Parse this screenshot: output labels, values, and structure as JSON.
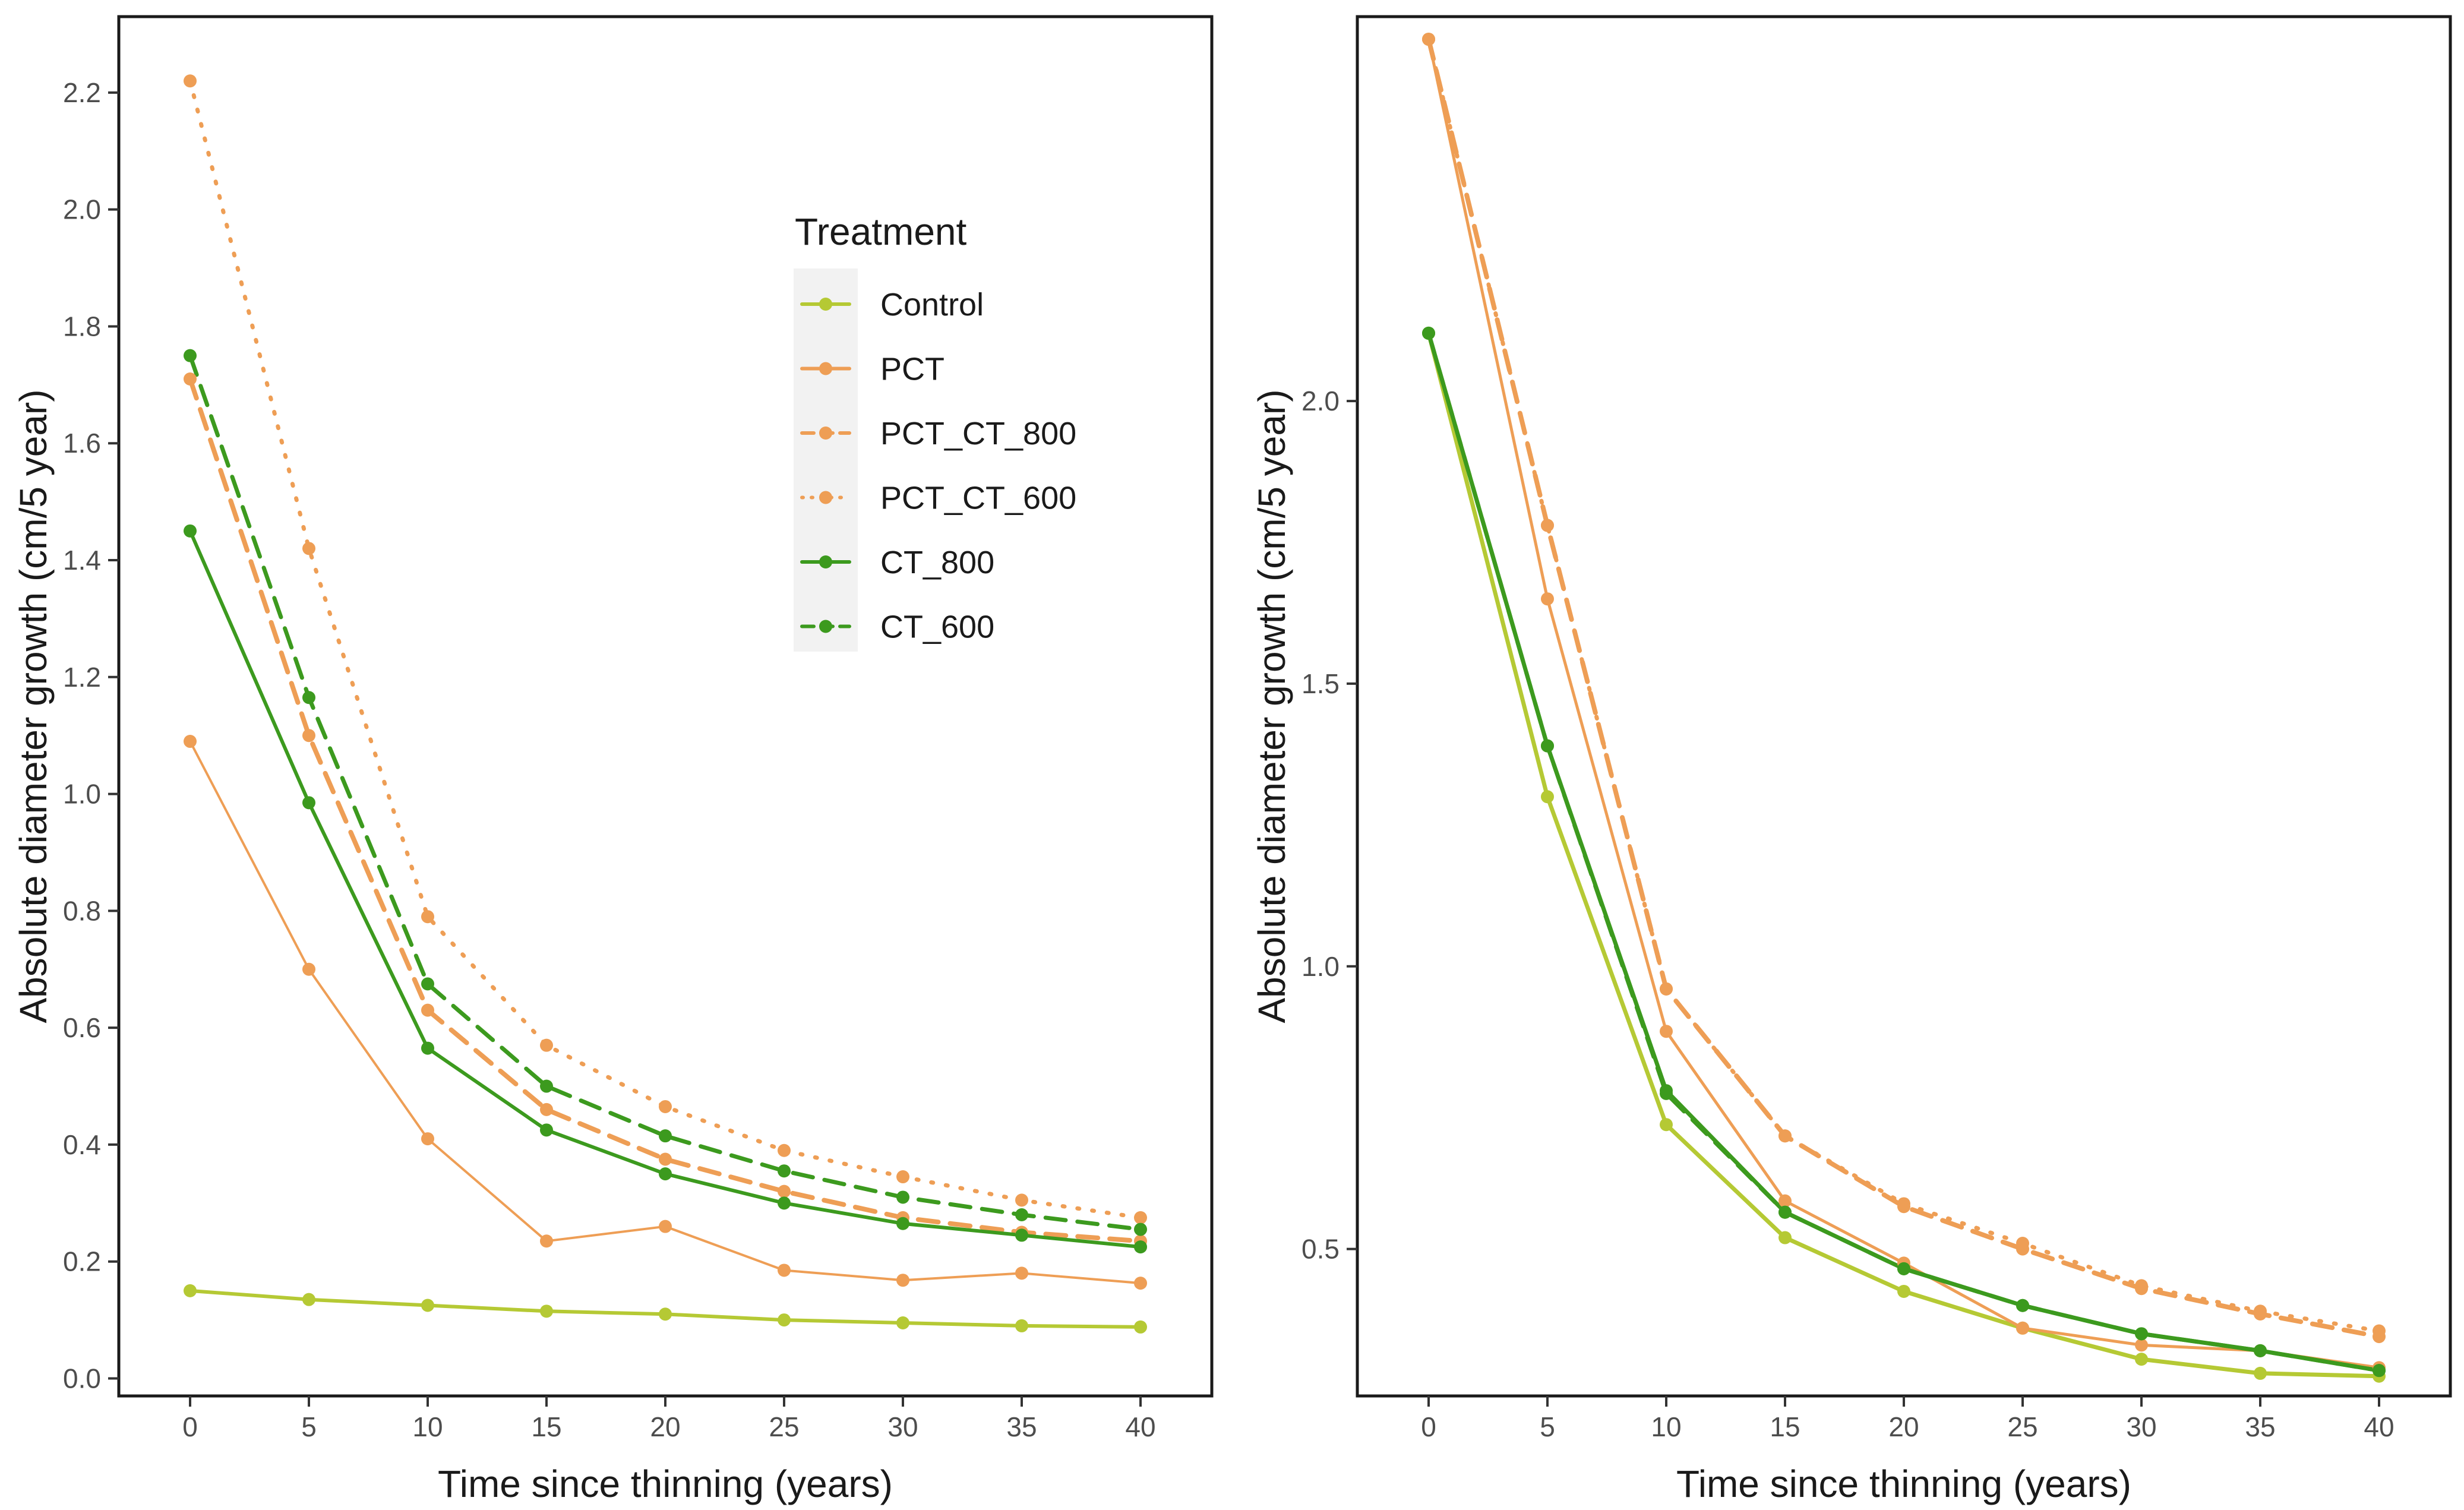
{
  "legend": {
    "title": "Treatment",
    "entries": [
      {
        "name": "Control",
        "color": "#b5c934",
        "dash": "solid"
      },
      {
        "name": "PCT",
        "color": "#ee9e55",
        "dash": "solid"
      },
      {
        "name": "PCT_CT_800",
        "color": "#ee9e55",
        "dash": "dashed"
      },
      {
        "name": "PCT_CT_600",
        "color": "#ee9e55",
        "dash": "dotted"
      },
      {
        "name": "CT_800",
        "color": "#3c9a1e",
        "dash": "solid"
      },
      {
        "name": "CT_600",
        "color": "#3c9a1e",
        "dash": "dashed"
      }
    ]
  },
  "chart_data": [
    {
      "type": "line",
      "xlabel": "Time since thinning (years)",
      "ylabel": "Absolute diameter growth (cm/5 year)",
      "xlim": [
        -3,
        43
      ],
      "ylim": [
        -0.03,
        2.33
      ],
      "x_ticks": [
        0,
        5,
        10,
        15,
        20,
        25,
        30,
        35,
        40
      ],
      "y_ticks": [
        0.0,
        0.2,
        0.4,
        0.6,
        0.8,
        1.0,
        1.2,
        1.4,
        1.6,
        1.8,
        2.0,
        2.2
      ],
      "y_tick_labels": [
        "0.0",
        "0.2",
        "0.4",
        "0.6",
        "0.8",
        "1.0",
        "1.2",
        "1.4",
        "1.6",
        "1.8",
        "2.0",
        "2.2"
      ],
      "x": [
        0,
        5,
        10,
        15,
        20,
        25,
        30,
        35,
        40
      ],
      "series": [
        {
          "name": "Control",
          "color": "#b5c934",
          "dash": "solid",
          "width": 6,
          "values": [
            0.15,
            0.135,
            0.125,
            0.115,
            0.11,
            0.1,
            0.095,
            0.09,
            0.088
          ]
        },
        {
          "name": "PCT",
          "color": "#ee9e55",
          "dash": "solid",
          "width": 4,
          "values": [
            1.09,
            0.7,
            0.41,
            0.235,
            0.26,
            0.185,
            0.168,
            0.18,
            0.163
          ]
        },
        {
          "name": "PCT_CT_800",
          "color": "#ee9e55",
          "dash": "dashed",
          "width": 8,
          "values": [
            1.71,
            1.1,
            0.63,
            0.46,
            0.375,
            0.32,
            0.275,
            0.25,
            0.235
          ]
        },
        {
          "name": "PCT_CT_600",
          "color": "#ee9e55",
          "dash": "dotted",
          "width": 7,
          "values": [
            2.22,
            1.42,
            0.79,
            0.57,
            0.465,
            0.39,
            0.345,
            0.305,
            0.275
          ]
        },
        {
          "name": "CT_800",
          "color": "#3c9a1e",
          "dash": "solid",
          "width": 6,
          "values": [
            1.45,
            0.985,
            0.565,
            0.425,
            0.35,
            0.3,
            0.265,
            0.245,
            0.225
          ]
        },
        {
          "name": "CT_600",
          "color": "#3c9a1e",
          "dash": "dashed",
          "width": 7,
          "values": [
            1.75,
            1.165,
            0.675,
            0.5,
            0.415,
            0.355,
            0.31,
            0.28,
            0.255
          ]
        }
      ]
    },
    {
      "type": "line",
      "xlabel": "Time since thinning (years)",
      "ylabel": "Absolute diameter growth (cm/5 year)",
      "xlim": [
        -3,
        43
      ],
      "ylim": [
        0.24,
        2.68
      ],
      "x_ticks": [
        0,
        5,
        10,
        15,
        20,
        25,
        30,
        35,
        40
      ],
      "y_ticks": [
        0.5,
        1.0,
        1.5,
        2.0
      ],
      "y_tick_labels": [
        "0.5",
        "1.0",
        "1.5",
        "2.0"
      ],
      "x": [
        0,
        5,
        10,
        15,
        20,
        25,
        30,
        35,
        40
      ],
      "series": [
        {
          "name": "Control",
          "color": "#b5c934",
          "dash": "solid",
          "width": 7,
          "values": [
            2.12,
            1.3,
            0.72,
            0.52,
            0.425,
            0.36,
            0.305,
            0.28,
            0.275
          ]
        },
        {
          "name": "PCT",
          "color": "#ee9e55",
          "dash": "solid",
          "width": 5,
          "values": [
            2.64,
            1.65,
            0.885,
            0.585,
            0.475,
            0.36,
            0.33,
            0.32,
            0.29
          ]
        },
        {
          "name": "PCT_CT_800",
          "color": "#ee9e55",
          "dash": "dashed",
          "width": 8,
          "values": [
            2.64,
            1.78,
            0.96,
            0.7,
            0.575,
            0.5,
            0.43,
            0.385,
            0.345
          ]
        },
        {
          "name": "PCT_CT_600",
          "color": "#ee9e55",
          "dash": "dotted",
          "width": 7,
          "values": [
            2.64,
            1.78,
            0.96,
            0.7,
            0.58,
            0.51,
            0.435,
            0.39,
            0.355
          ]
        },
        {
          "name": "CT_800",
          "color": "#3c9a1e",
          "dash": "solid",
          "width": 7,
          "values": [
            2.12,
            1.39,
            0.78,
            0.565,
            0.465,
            0.4,
            0.35,
            0.32,
            0.285
          ]
        },
        {
          "name": "CT_600",
          "color": "#3c9a1e",
          "dash": "dashed",
          "width": 7,
          "values": [
            2.12,
            1.39,
            0.775,
            0.565,
            0.465,
            0.4,
            0.35,
            0.32,
            0.285
          ]
        }
      ]
    }
  ]
}
